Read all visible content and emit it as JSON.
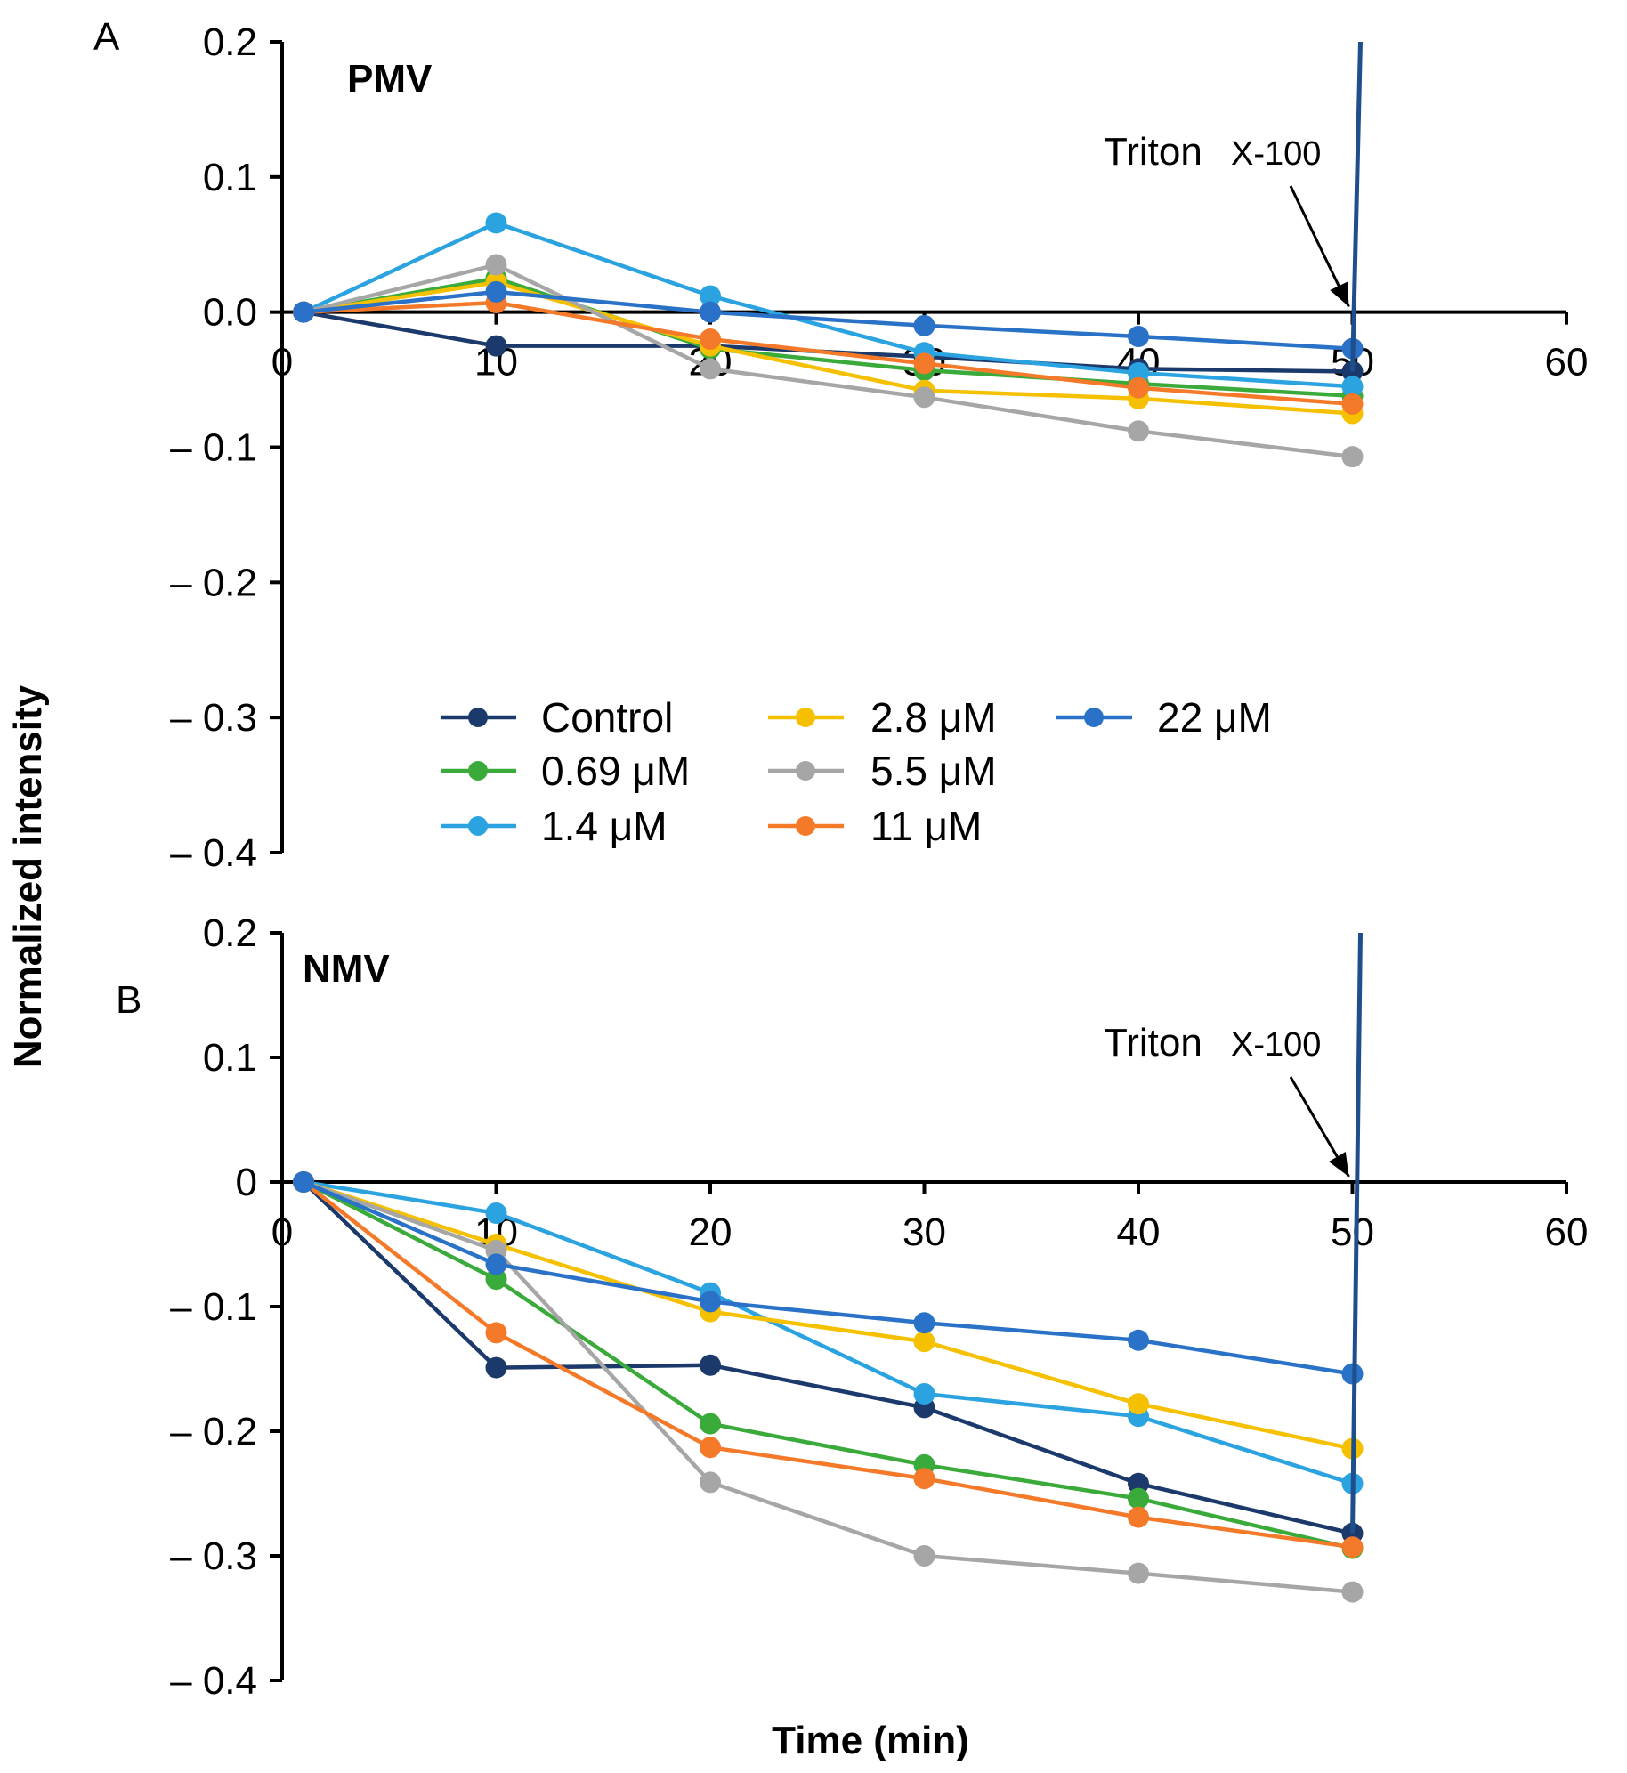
{
  "chart_data": [
    {
      "type": "line",
      "panel": "A",
      "title": "PMV",
      "xlabel": "Time (min)",
      "ylabel": "Normalized intensity",
      "xlim": [
        0,
        60
      ],
      "ylim": [
        -0.4,
        0.2
      ],
      "x_ticks": [
        "0",
        "10",
        "20",
        "30",
        "40",
        "50",
        "60"
      ],
      "y_ticks": [
        "0.2",
        "0.1",
        "0.0",
        "– 0.1",
        "– 0.2",
        "– 0.3",
        "– 0.4"
      ],
      "annotation": {
        "text": "Triton",
        "subtext": "X-100",
        "x": 50
      },
      "series": [
        {
          "name": "Control",
          "color": "#1b3a6b",
          "x": [
            1,
            10,
            20,
            30,
            40,
            50
          ],
          "values": [
            0.0,
            -0.025,
            -0.025,
            -0.033,
            -0.042,
            -0.044
          ]
        },
        {
          "name": "0.69 μM",
          "color": "#3aaa3a",
          "x": [
            1,
            10,
            20,
            30,
            40,
            50
          ],
          "values": [
            0.0,
            0.025,
            -0.027,
            -0.043,
            -0.053,
            -0.062
          ]
        },
        {
          "name": "1.4 μM",
          "color": "#2ba3e0",
          "x": [
            1,
            10,
            20,
            30,
            40,
            50
          ],
          "values": [
            0.0,
            0.066,
            0.012,
            -0.03,
            -0.045,
            -0.055
          ]
        },
        {
          "name": "2.8 μM",
          "color": "#f5c000",
          "x": [
            1,
            10,
            20,
            30,
            40,
            50
          ],
          "values": [
            0.0,
            0.022,
            -0.025,
            -0.058,
            -0.064,
            -0.075
          ]
        },
        {
          "name": "5.5 μM",
          "color": "#a6a6a6",
          "x": [
            1,
            10,
            20,
            30,
            40,
            50
          ],
          "values": [
            0.0,
            0.035,
            -0.042,
            -0.063,
            -0.088,
            -0.107
          ]
        },
        {
          "name": "11 μM",
          "color": "#f47a2a",
          "x": [
            1,
            10,
            20,
            30,
            40,
            50
          ],
          "values": [
            0.0,
            0.007,
            -0.02,
            -0.038,
            -0.056,
            -0.068
          ]
        },
        {
          "name": "22 μM",
          "color": "#2a72c7",
          "x": [
            1,
            10,
            20,
            30,
            40,
            50
          ],
          "values": [
            0.0,
            0.015,
            0.0,
            -0.01,
            -0.018,
            -0.027
          ]
        }
      ]
    },
    {
      "type": "line",
      "panel": "B",
      "title": "NMV",
      "xlabel": "Time (min)",
      "ylabel": "Normalized intensity",
      "xlim": [
        0,
        60
      ],
      "ylim": [
        -0.4,
        0.2
      ],
      "x_ticks": [
        "0",
        "10",
        "20",
        "30",
        "40",
        "50",
        "60"
      ],
      "y_ticks": [
        "0.2",
        "0.1",
        "0",
        "– 0.1",
        "– 0.2",
        "– 0.3",
        "– 0.4"
      ],
      "annotation": {
        "text": "Triton",
        "subtext": "X-100",
        "x": 50
      },
      "series": [
        {
          "name": "Control",
          "color": "#1b3a6b",
          "x": [
            1,
            10,
            20,
            30,
            40,
            50
          ],
          "values": [
            0.0,
            -0.149,
            -0.147,
            -0.181,
            -0.242,
            -0.282
          ]
        },
        {
          "name": "0.69 μM",
          "color": "#3aaa3a",
          "x": [
            1,
            10,
            20,
            30,
            40,
            50
          ],
          "values": [
            0.0,
            -0.078,
            -0.194,
            -0.227,
            -0.254,
            -0.294
          ]
        },
        {
          "name": "1.4 μM",
          "color": "#2ba3e0",
          "x": [
            1,
            10,
            20,
            30,
            40,
            50
          ],
          "values": [
            0.0,
            -0.025,
            -0.089,
            -0.17,
            -0.188,
            -0.242
          ]
        },
        {
          "name": "2.8 μM",
          "color": "#f5c000",
          "x": [
            1,
            10,
            20,
            30,
            40,
            50
          ],
          "values": [
            0.0,
            -0.05,
            -0.104,
            -0.128,
            -0.178,
            -0.214
          ]
        },
        {
          "name": "5.5 μM",
          "color": "#a6a6a6",
          "x": [
            1,
            10,
            20,
            30,
            40,
            50
          ],
          "values": [
            0.0,
            -0.055,
            -0.241,
            -0.3,
            -0.314,
            -0.329
          ]
        },
        {
          "name": "11 μM",
          "color": "#f47a2a",
          "x": [
            1,
            10,
            20,
            30,
            40,
            50
          ],
          "values": [
            0.0,
            -0.121,
            -0.213,
            -0.238,
            -0.269,
            -0.293
          ]
        },
        {
          "name": "22 μM",
          "color": "#2a72c7",
          "x": [
            1,
            10,
            20,
            30,
            40,
            50
          ],
          "values": [
            0.0,
            -0.066,
            -0.096,
            -0.113,
            -0.127,
            -0.154
          ]
        }
      ]
    }
  ],
  "legend": {
    "items": [
      {
        "name": "Control",
        "color": "#1b3a6b"
      },
      {
        "name": "0.69 μM",
        "color": "#3aaa3a"
      },
      {
        "name": "1.4 μM",
        "color": "#2ba3e0"
      },
      {
        "name": "2.8 μM",
        "color": "#f5c000"
      },
      {
        "name": "5.5 μM",
        "color": "#a6a6a6"
      },
      {
        "name": "11 μM",
        "color": "#f47a2a"
      },
      {
        "name": "22 μM",
        "color": "#2a72c7"
      }
    ]
  },
  "spike_color": "#1f4e8c"
}
